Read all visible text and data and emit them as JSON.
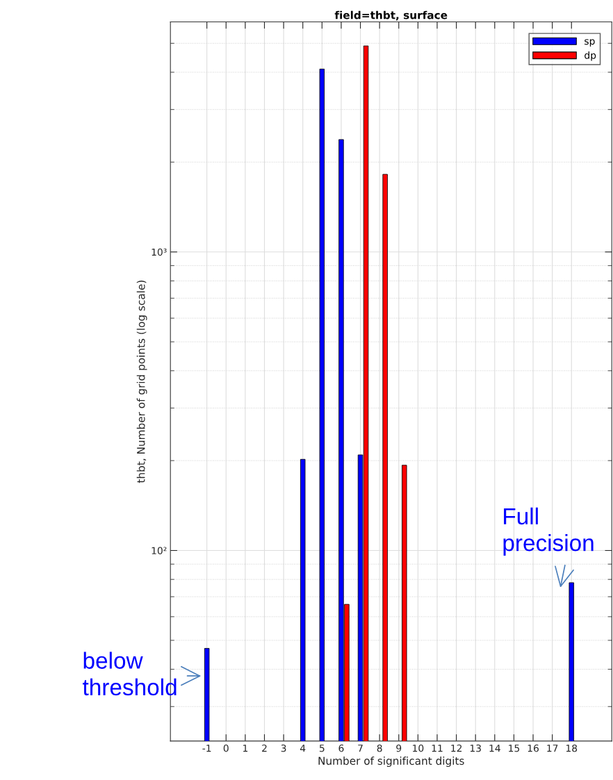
{
  "chart_data": {
    "type": "bar",
    "title": "field=thbt, surface",
    "xlabel": "Number of significant digits",
    "ylabel": "thbt, Number of grid points (log scale)",
    "x": [
      -1,
      0,
      1,
      2,
      3,
      4,
      5,
      6,
      7,
      8,
      9,
      10,
      11,
      12,
      13,
      14,
      15,
      16,
      17,
      18
    ],
    "series": [
      {
        "name": "sp",
        "color": "#0000ff",
        "values": [
          47,
          null,
          null,
          null,
          null,
          202,
          4100,
          2380,
          209,
          null,
          null,
          null,
          null,
          null,
          null,
          null,
          null,
          null,
          null,
          78
        ]
      },
      {
        "name": "dp",
        "color": "#ff0000",
        "values": [
          null,
          null,
          null,
          null,
          null,
          null,
          null,
          66,
          4900,
          1820,
          193,
          null,
          null,
          null,
          null,
          null,
          null,
          null,
          null,
          null
        ]
      }
    ],
    "log": true,
    "xlim": [
      -2.9,
      20.1
    ],
    "xticks": [
      -1,
      0,
      1,
      2,
      3,
      4,
      5,
      6,
      7,
      8,
      9,
      10,
      11,
      12,
      13,
      14,
      15,
      16,
      17,
      18
    ],
    "ylim": [
      23,
      5900
    ],
    "yticks": [
      {
        "value": 100,
        "label": "10²"
      },
      {
        "value": 1000,
        "label": "10³"
      }
    ],
    "grid": true,
    "legend": "top right",
    "annotations": [
      {
        "text": "below\nthreshold",
        "x": -1,
        "y": 38
      },
      {
        "text": "Full\nprecision",
        "x": 18,
        "y": 74
      }
    ]
  }
}
